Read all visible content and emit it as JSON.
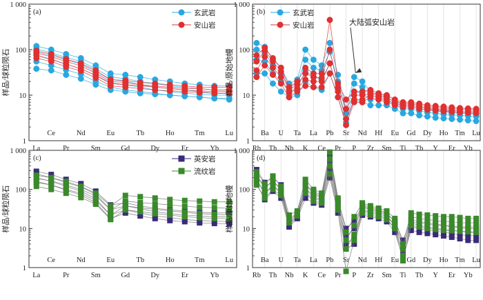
{
  "chart_data": [
    {
      "type": "line",
      "panel": "(a)",
      "ylabel": "样品/球粒陨石",
      "yscale": "log",
      "ylim": [
        1,
        1000
      ],
      "yticks": [
        "1",
        "10",
        "100",
        "1 000"
      ],
      "x_labels_upper": [
        "Ce",
        "Nd",
        "Eu",
        "Tb",
        "Ho",
        "Tm",
        "Lu"
      ],
      "x_labels_lower": [
        "La",
        "Pr",
        "Sm",
        "Gd",
        "Dy",
        "Er",
        "Yb"
      ],
      "categories": [
        "La",
        "Ce",
        "Pr",
        "Nd",
        "Sm",
        "Eu",
        "Gd",
        "Tb",
        "Dy",
        "Ho",
        "Er",
        "Tm",
        "Yb",
        "Lu"
      ],
      "legend": {
        "position": "top-right"
      },
      "series": [
        {
          "name": "玄武岩",
          "color": "#29a8e0",
          "marker": "circle",
          "lines": [
            [
              120,
              100,
              80,
              65,
              45,
              30,
              28,
              25,
              22,
              20,
              18,
              17,
              16,
              16
            ],
            [
              105,
              85,
              68,
              55,
              38,
              25,
              23,
              20,
              18,
              16,
              15,
              14,
              13,
              13
            ],
            [
              90,
              75,
              60,
              48,
              32,
              22,
              20,
              17,
              15,
              14,
              13,
              12,
              11,
              11
            ],
            [
              75,
              60,
              48,
              38,
              27,
              19,
              17,
              15,
              13,
              12,
              11,
              10.5,
              10,
              10
            ],
            [
              55,
              45,
              36,
              29,
              20,
              15,
              13,
              12,
              11,
              10,
              9.5,
              9,
              8.5,
              8.5
            ],
            [
              38,
              35,
              28,
              23,
              17,
              13,
              12,
              11,
              10.5,
              10,
              9.5,
              9,
              8.5,
              8
            ]
          ]
        },
        {
          "name": "安山岩",
          "color": "#e03030",
          "marker": "circle",
          "lines": [
            [
              95,
              80,
              62,
              50,
              35,
              22,
              21,
              19,
              18,
              17,
              16,
              15,
              15,
              15
            ],
            [
              85,
              70,
              55,
              44,
              30,
              20,
              19,
              17,
              16,
              15,
              14,
              14,
              13,
              13
            ],
            [
              75,
              62,
              48,
              38,
              27,
              18,
              17,
              16,
              15,
              14,
              13,
              12.5,
              12,
              12
            ],
            [
              65,
              55,
              42,
              34,
              24,
              16,
              15,
              14,
              13,
              12.5,
              12,
              11.5,
              11,
              11
            ]
          ]
        }
      ]
    },
    {
      "type": "line",
      "panel": "(b)",
      "ylabel": "样品/原始地幔",
      "yscale": "log",
      "ylim": [
        1,
        1000
      ],
      "yticks": [
        "1",
        "10",
        "100",
        "1 000"
      ],
      "categories": [
        "Rb",
        "Ba",
        "Th",
        "U",
        "Nb",
        "Ta",
        "K",
        "La",
        "Ce",
        "Pb",
        "Pr",
        "Sr",
        "P",
        "Nd",
        "Zr",
        "Hf",
        "Sm",
        "Eu",
        "Ti",
        "Gd",
        "Tb",
        "Dy",
        "Y",
        "Ho",
        "Er",
        "Tm",
        "Yb",
        "Lu"
      ],
      "annotation": "大陆弧安山岩",
      "legend": {
        "position": "top-left"
      },
      "series": [
        {
          "name": "玄武岩",
          "color": "#29a8e0",
          "marker": "circle",
          "lines": [
            [
              140,
              115,
              60,
              40,
              18,
              22,
              100,
              60,
              45,
              140,
              28,
              5,
              25,
              20,
              12,
              10,
              10,
              8,
              6,
              6,
              5.5,
              5,
              4.8,
              4.6,
              4.4,
              4.2,
              4.1,
              4
            ],
            [
              100,
              85,
              45,
              30,
              15,
              18,
              60,
              40,
              35,
              90,
              20,
              4,
              18,
              15,
              10,
              9,
              9,
              7,
              5.5,
              5.5,
              5,
              4.7,
              4.5,
              4.3,
              4.1,
              4,
              3.9,
              3.8
            ],
            [
              60,
              55,
              30,
              20,
              12,
              14,
              35,
              25,
              22,
              50,
              14,
              3,
              12,
              11,
              8,
              8,
              8,
              6,
              5,
              5,
              4.5,
              4.2,
              4,
              3.8,
              3.7,
              3.6,
              3.5,
              3.4
            ],
            [
              30,
              30,
              18,
              12,
              9,
              10,
              20,
              15,
              13,
              30,
              9,
              2.5,
              8,
              7,
              6,
              6,
              6,
              5,
              4,
              4,
              3.6,
              3.4,
              3.2,
              3.1,
              3,
              2.9,
              2.8,
              2.7
            ]
          ]
        },
        {
          "name": "安山岩",
          "color": "#e03030",
          "marker": "circle",
          "lines": [
            [
              75,
              110,
              65,
              40,
              15,
              20,
              40,
              30,
              30,
              450,
              18,
              8,
              12,
              12,
              13,
              11,
              10,
              8,
              7,
              7,
              6.5,
              6,
              5.8,
              5.6,
              5.4,
              5.2,
              5.1,
              5
            ],
            [
              55,
              95,
              55,
              33,
              13,
              17,
              30,
              25,
              24,
              100,
              15,
              5,
              10,
              10,
              11,
              10,
              9,
              7,
              6.5,
              6.5,
              6,
              5.6,
              5.4,
              5.2,
              5,
              4.9,
              4.8,
              4.7
            ],
            [
              35,
              70,
              40,
              25,
              11,
              14,
              22,
              20,
              20,
              50,
              12,
              3,
              8,
              8,
              10,
              9,
              8,
              6.5,
              6,
              6,
              5.5,
              5.2,
              5,
              4.8,
              4.6,
              4.5,
              4.4,
              4.3
            ],
            [
              25,
              45,
              28,
              18,
              9,
              12,
              16,
              15,
              15,
              30,
              9,
              2.2,
              7,
              7,
              9,
              8,
              7,
              6,
              5.5,
              5.5,
              5,
              4.8,
              4.6,
              4.4,
              4.3,
              4.2,
              4.1,
              4
            ]
          ]
        }
      ]
    },
    {
      "type": "line",
      "panel": "(c)",
      "ylabel": "样品/球粒陨石",
      "yscale": "log",
      "ylim": [
        1,
        1000
      ],
      "yticks": [
        "1",
        "10",
        "100",
        "1 000"
      ],
      "x_labels_upper": [
        "Ce",
        "Nd",
        "Eu",
        "Tb",
        "Ho",
        "Tm",
        "Lu"
      ],
      "x_labels_lower": [
        "La",
        "Pr",
        "Sm",
        "Gd",
        "Dy",
        "Er",
        "Yb"
      ],
      "categories": [
        "La",
        "Ce",
        "Pr",
        "Nd",
        "Sm",
        "Eu",
        "Gd",
        "Tb",
        "Dy",
        "Ho",
        "Er",
        "Tm",
        "Yb",
        "Lu"
      ],
      "legend": {
        "position": "top-right"
      },
      "series": [
        {
          "name": "英安岩",
          "color": "#3a2a7a",
          "marker": "square",
          "lines": [
            [
              290,
              240,
              180,
              140,
              90,
              40,
              45,
              38,
              33,
              30,
              28,
              26,
              25,
              25
            ],
            [
              250,
              200,
              150,
              115,
              75,
              30,
              38,
              32,
              27,
              24,
              22,
              21,
              20,
              20
            ],
            [
              200,
              160,
              120,
              90,
              58,
              22,
              30,
              25,
              21,
              19,
              17,
              16,
              15.5,
              15
            ],
            [
              160,
              130,
              95,
              72,
              46,
              18,
              25,
              21,
              18,
              16,
              15,
              14,
              13.5,
              13
            ]
          ]
        },
        {
          "name": "流纹岩",
          "color": "#3a8a2a",
          "marker": "square",
          "lines": [
            [
              230,
              200,
              160,
              120,
              80,
              38,
              70,
              65,
              60,
              55,
              52,
              50,
              48,
              48
            ],
            [
              190,
              165,
              130,
              100,
              68,
              30,
              50,
              46,
              43,
              40,
              37,
              35,
              34,
              33
            ],
            [
              150,
              130,
              100,
              80,
              52,
              22,
              38,
              34,
              31,
              28,
              26,
              24,
              23,
              22
            ],
            [
              120,
              100,
              80,
              62,
              42,
              17,
              30,
              27,
              24,
              22,
              20,
              19,
              18,
              18
            ]
          ]
        }
      ]
    },
    {
      "type": "line",
      "panel": "(d)",
      "ylabel": "样品/原始地幔",
      "yscale": "log",
      "ylim": [
        1,
        1000
      ],
      "yticks": [
        "1",
        "10",
        "100",
        "1 000"
      ],
      "categories": [
        "Rb",
        "Ba",
        "Th",
        "U",
        "Nb",
        "Ta",
        "K",
        "La",
        "Ce",
        "Pb",
        "Pr",
        "Sr",
        "P",
        "Nd",
        "Zr",
        "Hf",
        "Sm",
        "Eu",
        "Ti",
        "Gd",
        "Tb",
        "Dy",
        "Y",
        "Ho",
        "Er",
        "Tm",
        "Yb",
        "Lu"
      ],
      "legend": {
        "position": "none"
      },
      "series": [
        {
          "name": "英安岩",
          "color": "#3a2a7a",
          "marker": "square",
          "lines": [
            [
              320,
              150,
              200,
              130,
              15,
              25,
              130,
              90,
              70,
              800,
              55,
              10,
              15,
              40,
              35,
              30,
              25,
              15,
              5,
              17,
              15,
              14,
              13,
              12,
              11,
              10.5,
              10,
              10
            ],
            [
              240,
              110,
              160,
              100,
              13,
              22,
              100,
              75,
              60,
              500,
              45,
              6,
              10,
              35,
              30,
              26,
              22,
              12,
              3.5,
              14,
              12,
              11,
              10,
              9.5,
              9,
              8.5,
              8,
              8
            ],
            [
              180,
              80,
              120,
              80,
              12,
              20,
              80,
              60,
              50,
              300,
              35,
              4,
              6,
              28,
              25,
              22,
              18,
              10,
              2.5,
              11,
              10,
              9,
              8.5,
              8,
              7.5,
              7,
              6.5,
              6.5
            ],
            [
              140,
              55,
              90,
              60,
              11,
              18,
              60,
              45,
              40,
              200,
              25,
              3,
              4,
              22,
              20,
              18,
              15,
              8,
              1.8,
              9,
              8,
              7.5,
              7,
              6.5,
              6,
              5.5,
              5,
              5
            ]
          ]
        },
        {
          "name": "流纹岩",
          "color": "#3a8a2a",
          "marker": "square",
          "lines": [
            [
              280,
              140,
              220,
              120,
              22,
              28,
              180,
              100,
              80,
              900,
              60,
              8,
              20,
              45,
              38,
              33,
              28,
              18,
              4,
              25,
              23,
              22,
              21,
              20,
              20,
              19,
              18,
              18
            ],
            [
              220,
              110,
              170,
              100,
              18,
              25,
              130,
              80,
              65,
              600,
              50,
              5,
              12,
              38,
              32,
              28,
              24,
              15,
              3,
              20,
              18,
              17,
              16,
              15,
              15,
              14,
              14,
              14
            ],
            [
              170,
              80,
              130,
              85,
              16,
              23,
              100,
              65,
              55,
              400,
              40,
              3,
              7,
              30,
              27,
              24,
              20,
              12,
              2,
              15,
              14,
              13,
              12,
              12,
              11.5,
              11,
              11,
              11
            ],
            [
              130,
              60,
              100,
              70,
              14,
              21,
              80,
              50,
              45,
              250,
              30,
              0.8,
              5,
              25,
              22,
              20,
              17,
              10,
              1.5,
              12,
              11,
              10,
              9.5,
              9,
              8.8,
              8.5,
              8.3,
              8
            ]
          ]
        }
      ]
    }
  ]
}
